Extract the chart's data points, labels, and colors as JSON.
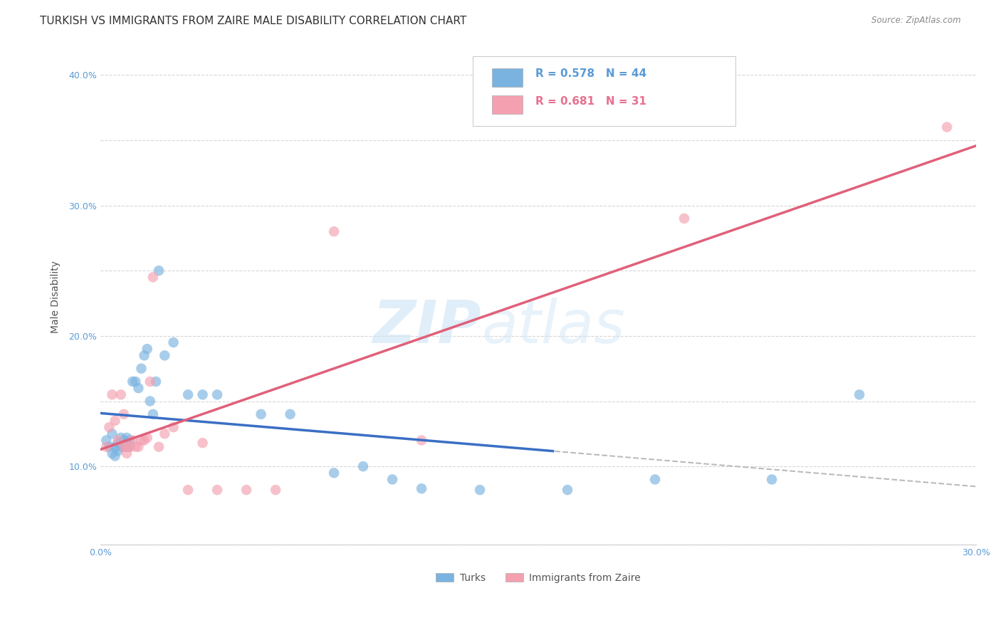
{
  "title": "TURKISH VS IMMIGRANTS FROM ZAIRE MALE DISABILITY CORRELATION CHART",
  "source": "Source: ZipAtlas.com",
  "ylabel": "Male Disability",
  "xlim": [
    0.0,
    0.3
  ],
  "ylim": [
    0.04,
    0.42
  ],
  "ytick_labels": [
    "",
    "10.0%",
    "",
    "20.0%",
    "",
    "30.0%",
    "",
    "40.0%"
  ],
  "ytick_vals": [
    0.04,
    0.1,
    0.15,
    0.2,
    0.25,
    0.3,
    0.35,
    0.4
  ],
  "xtick_labels": [
    "0.0%",
    "",
    "",
    "",
    "",
    "",
    "",
    "",
    "",
    "30.0%"
  ],
  "xtick_vals": [
    0.0,
    0.033,
    0.067,
    0.1,
    0.133,
    0.167,
    0.2,
    0.233,
    0.267,
    0.3
  ],
  "legend_label1": "Turks",
  "legend_label2": "Immigrants from Zaire",
  "R1": 0.578,
  "N1": 44,
  "R2": 0.681,
  "N2": 31,
  "color_blue": "#7ab3e0",
  "color_pink": "#f4a0b0",
  "color_blue_line": "#3a6fc4",
  "color_pink_line": "#e0607a",
  "color_blue_text": "#5b9bd5",
  "color_pink_text": "#e87090",
  "background_color": "#ffffff",
  "grid_color": "#cccccc",
  "turks_x": [
    0.002,
    0.003,
    0.004,
    0.004,
    0.005,
    0.005,
    0.006,
    0.006,
    0.007,
    0.007,
    0.007,
    0.008,
    0.008,
    0.009,
    0.009,
    0.009,
    0.01,
    0.01,
    0.011,
    0.012,
    0.013,
    0.014,
    0.015,
    0.016,
    0.017,
    0.018,
    0.019,
    0.02,
    0.022,
    0.025,
    0.03,
    0.035,
    0.04,
    0.055,
    0.065,
    0.08,
    0.09,
    0.1,
    0.11,
    0.13,
    0.16,
    0.19,
    0.23,
    0.26
  ],
  "turks_y": [
    0.12,
    0.115,
    0.11,
    0.125,
    0.115,
    0.108,
    0.118,
    0.112,
    0.118,
    0.115,
    0.122,
    0.12,
    0.115,
    0.118,
    0.122,
    0.115,
    0.12,
    0.115,
    0.165,
    0.165,
    0.16,
    0.175,
    0.185,
    0.19,
    0.15,
    0.14,
    0.165,
    0.25,
    0.185,
    0.195,
    0.155,
    0.155,
    0.155,
    0.14,
    0.14,
    0.095,
    0.1,
    0.09,
    0.083,
    0.082,
    0.082,
    0.09,
    0.09,
    0.155
  ],
  "zaire_x": [
    0.002,
    0.003,
    0.004,
    0.005,
    0.006,
    0.007,
    0.008,
    0.008,
    0.009,
    0.009,
    0.01,
    0.011,
    0.012,
    0.013,
    0.014,
    0.015,
    0.016,
    0.017,
    0.018,
    0.02,
    0.022,
    0.025,
    0.03,
    0.035,
    0.04,
    0.05,
    0.06,
    0.08,
    0.11,
    0.2,
    0.29
  ],
  "zaire_y": [
    0.115,
    0.13,
    0.155,
    0.135,
    0.12,
    0.155,
    0.14,
    0.115,
    0.115,
    0.11,
    0.115,
    0.12,
    0.115,
    0.115,
    0.12,
    0.12,
    0.122,
    0.165,
    0.245,
    0.115,
    0.125,
    0.13,
    0.082,
    0.118,
    0.082,
    0.082,
    0.082,
    0.28,
    0.12,
    0.29,
    0.36
  ],
  "watermark_zip": "ZIP",
  "watermark_atlas": "atlas",
  "title_fontsize": 11,
  "axis_label_fontsize": 10,
  "tick_fontsize": 9,
  "legend_fontsize": 11
}
